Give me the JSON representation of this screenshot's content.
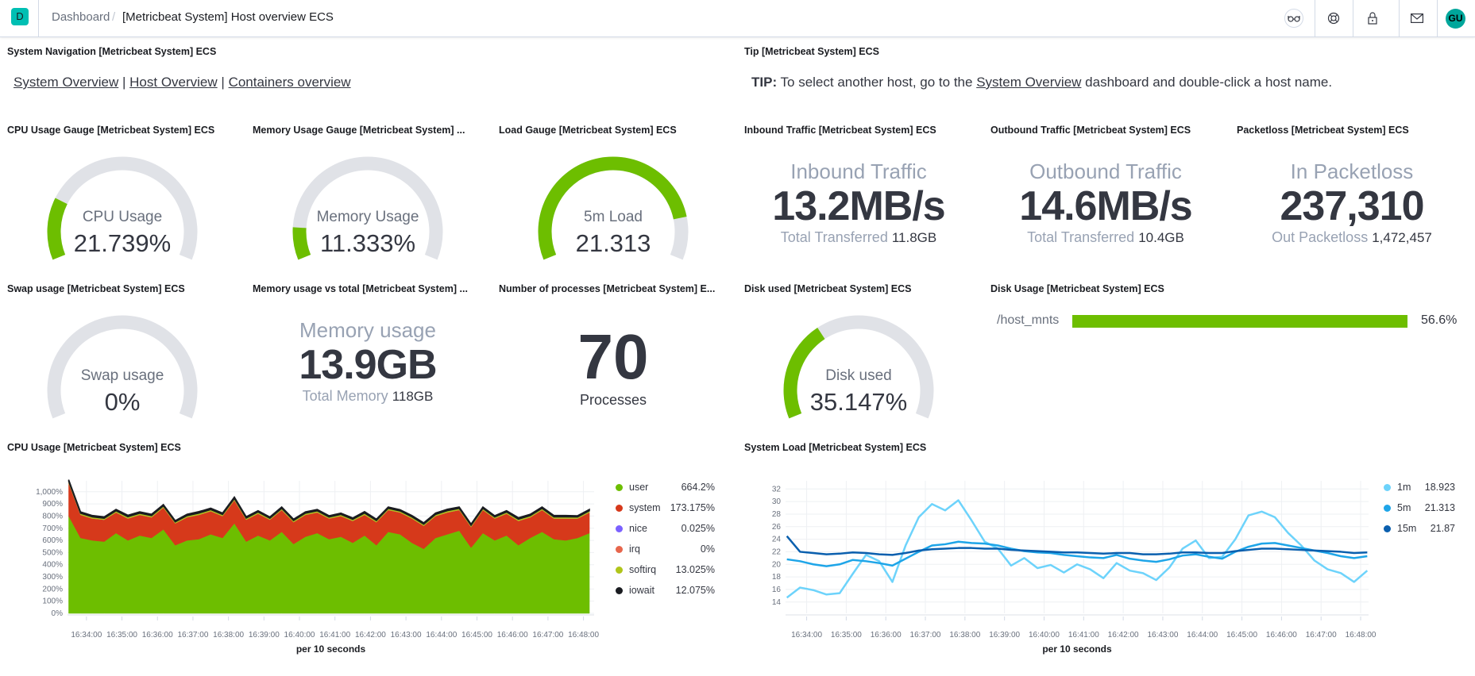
{
  "header": {
    "logo_letter": "D",
    "breadcrumb_root": "Dashboard",
    "breadcrumb_current": "[Metricbeat System] Host overview ECS",
    "icons": [
      "glasses-icon",
      "help-icon",
      "lock-icon",
      "mail-icon"
    ],
    "avatar": "GU"
  },
  "colors": {
    "accent": "#00bfb3",
    "green": "#6dbe00",
    "track": "#e0e2e7"
  },
  "nav": {
    "title": "System Navigation [Metricbeat System] ECS",
    "links": [
      "System Overview",
      "Host Overview",
      "Containers overview"
    ],
    "sep": "|"
  },
  "tip": {
    "title": "Tip [Metricbeat System] ECS",
    "prefix": "TIP:",
    "before": " To select another host, go to the ",
    "link": "System Overview",
    "after": " dashboard and double-click a host name."
  },
  "gauges": {
    "cpu": {
      "title": "CPU Usage Gauge [Metricbeat System] ECS",
      "label": "CPU Usage",
      "value": "21.739%",
      "fill_fraction": 0.21739
    },
    "memory": {
      "title": "Memory Usage Gauge [Metricbeat System] ...",
      "label": "Memory Usage",
      "value": "11.333%",
      "fill_fraction": 0.11333
    },
    "load": {
      "title": "Load Gauge [Metricbeat System] ECS",
      "label": "5m Load",
      "value": "21.313",
      "fill_fraction": 0.85
    },
    "swap": {
      "title": "Swap usage [Metricbeat System] ECS",
      "label": "Swap usage",
      "value": "0%",
      "fill_fraction": 0
    },
    "disk": {
      "title": "Disk used [Metricbeat System] ECS",
      "label": "Disk used",
      "value": "35.147%",
      "fill_fraction": 0.35147
    }
  },
  "metrics": {
    "inbound": {
      "title": "Inbound Traffic [Metricbeat System] ECS",
      "label": "Inbound Traffic",
      "value": "13.2MB/s",
      "sub_label": "Total Transferred",
      "sub_value": "11.8GB"
    },
    "outbound": {
      "title": "Outbound Traffic [Metricbeat System] ECS",
      "label": "Outbound Traffic",
      "value": "14.6MB/s",
      "sub_label": "Total Transferred",
      "sub_value": "10.4GB"
    },
    "packetloss": {
      "title": "Packetloss [Metricbeat System] ECS",
      "label": "In Packetloss",
      "value": "237,310",
      "sub_label": "Out Packetloss",
      "sub_value": "1,472,457"
    },
    "memusage": {
      "title": "Memory usage vs total [Metricbeat System] ...",
      "label": "Memory usage",
      "value": "13.9GB",
      "sub_label": "Total Memory",
      "sub_value": "118GB"
    },
    "processes": {
      "title": "Number of processes [Metricbeat System] E...",
      "value": "70",
      "label": "Processes"
    }
  },
  "disk_usage": {
    "title": "Disk Usage [Metricbeat System] ECS",
    "rows": [
      {
        "label": "/host_mnts",
        "value": "56.6%"
      }
    ]
  },
  "chart_data": [
    {
      "type": "area",
      "stacked": true,
      "title": "CPU Usage [Metricbeat System] ECS",
      "xlabel": "per 10 seconds",
      "ylabel": "",
      "ylim": [
        0,
        1090
      ],
      "yticks": [
        "0%",
        "100%",
        "200%",
        "300%",
        "400%",
        "500%",
        "600%",
        "700%",
        "800%",
        "900%",
        "1,000%"
      ],
      "xticks": [
        "16:34:00",
        "16:35:00",
        "16:36:00",
        "16:37:00",
        "16:38:00",
        "16:39:00",
        "16:40:00",
        "16:41:00",
        "16:42:00",
        "16:43:00",
        "16:44:00",
        "16:45:00",
        "16:46:00",
        "16:47:00",
        "16:48:00"
      ],
      "grid": true,
      "legend": "right",
      "x": [
        "16:33:30",
        "16:33:50",
        "16:34:10",
        "16:34:30",
        "16:34:50",
        "16:35:10",
        "16:35:30",
        "16:35:50",
        "16:36:10",
        "16:36:30",
        "16:36:50",
        "16:37:10",
        "16:37:30",
        "16:37:50",
        "16:38:10",
        "16:38:30",
        "16:38:50",
        "16:39:10",
        "16:39:30",
        "16:39:50",
        "16:40:10",
        "16:40:30",
        "16:40:50",
        "16:41:10",
        "16:41:30",
        "16:41:50",
        "16:42:10",
        "16:42:30",
        "16:42:50",
        "16:43:10",
        "16:43:30",
        "16:43:50",
        "16:44:10",
        "16:44:30",
        "16:44:50",
        "16:45:10",
        "16:45:30",
        "16:45:50",
        "16:46:10",
        "16:46:30",
        "16:46:50",
        "16:47:10",
        "16:47:30",
        "16:47:50",
        "16:48:10"
      ],
      "series": [
        {
          "name": "user",
          "legend_value": "664.2%",
          "color": "#6dbe00",
          "values": [
            800,
            620,
            600,
            590,
            660,
            600,
            640,
            620,
            690,
            560,
            600,
            610,
            650,
            620,
            740,
            590,
            640,
            600,
            670,
            570,
            630,
            660,
            610,
            630,
            580,
            640,
            560,
            670,
            650,
            580,
            530,
            620,
            650,
            680,
            540,
            660,
            600,
            640,
            560,
            620,
            670,
            610,
            600,
            620,
            660
          ]
        },
        {
          "name": "system",
          "legend_value": "173.175%",
          "color": "#d6391b",
          "values": [
            270,
            190,
            180,
            180,
            170,
            180,
            170,
            170,
            180,
            180,
            190,
            200,
            190,
            180,
            190,
            180,
            180,
            170,
            180,
            180,
            180,
            170,
            170,
            170,
            180,
            170,
            190,
            180,
            180,
            200,
            190,
            180,
            180,
            170,
            170,
            190,
            180,
            180,
            200,
            170,
            180,
            170,
            180,
            160,
            170
          ]
        },
        {
          "name": "nice",
          "legend_value": "0.025%",
          "color": "#7b61ff",
          "values": [
            0,
            0,
            0,
            0,
            0,
            0,
            0,
            0,
            0,
            0,
            0,
            0,
            0,
            0,
            0,
            0,
            0,
            0,
            0,
            0,
            0,
            0,
            0,
            0,
            0,
            0,
            0,
            0,
            0,
            0,
            0,
            0,
            0,
            0,
            0,
            0,
            0,
            0,
            0,
            0,
            0,
            0,
            0,
            0,
            0
          ]
        },
        {
          "name": "irq",
          "legend_value": "0%",
          "color": "#e7664c",
          "values": [
            0,
            0,
            0,
            0,
            0,
            0,
            0,
            0,
            0,
            0,
            0,
            0,
            0,
            0,
            0,
            0,
            0,
            0,
            0,
            0,
            0,
            0,
            0,
            0,
            0,
            0,
            0,
            0,
            0,
            0,
            0,
            0,
            0,
            0,
            0,
            0,
            0,
            0,
            0,
            0,
            0,
            0,
            0,
            0,
            0
          ]
        },
        {
          "name": "softirq",
          "legend_value": "13.025%",
          "color": "#b0c51a",
          "values": [
            15,
            13,
            13,
            12,
            13,
            14,
            13,
            13,
            13,
            12,
            13,
            14,
            13,
            13,
            14,
            13,
            13,
            12,
            13,
            13,
            13,
            13,
            12,
            13,
            13,
            14,
            13,
            13,
            12,
            13,
            13,
            13,
            14,
            13,
            13,
            13,
            12,
            13,
            14,
            13,
            13,
            13,
            13,
            12,
            13
          ]
        },
        {
          "name": "iowait",
          "legend_value": "12.075%",
          "color": "#1a1c21",
          "values": [
            14,
            12,
            12,
            12,
            12,
            13,
            12,
            12,
            12,
            11,
            12,
            13,
            12,
            12,
            13,
            12,
            12,
            11,
            12,
            12,
            12,
            12,
            11,
            12,
            12,
            13,
            12,
            12,
            11,
            12,
            12,
            12,
            13,
            12,
            12,
            12,
            11,
            12,
            13,
            12,
            12,
            12,
            12,
            11,
            12
          ]
        }
      ]
    },
    {
      "type": "line",
      "title": "System Load [Metricbeat System] ECS",
      "xlabel": "per 10 seconds",
      "ylabel": "",
      "ylim": [
        12.2,
        33.3
      ],
      "yticks": [
        "14",
        "16",
        "18",
        "20",
        "22",
        "24",
        "26",
        "28",
        "30",
        "32"
      ],
      "xticks": [
        "16:34:00",
        "16:35:00",
        "16:36:00",
        "16:37:00",
        "16:38:00",
        "16:39:00",
        "16:40:00",
        "16:41:00",
        "16:42:00",
        "16:43:00",
        "16:44:00",
        "16:45:00",
        "16:46:00",
        "16:47:00",
        "16:48:00"
      ],
      "grid": true,
      "legend": "right",
      "x": [
        "16:33:30",
        "16:33:50",
        "16:34:10",
        "16:34:30",
        "16:34:50",
        "16:35:10",
        "16:35:30",
        "16:35:50",
        "16:36:10",
        "16:36:30",
        "16:36:50",
        "16:37:10",
        "16:37:30",
        "16:37:50",
        "16:38:10",
        "16:38:30",
        "16:38:50",
        "16:39:10",
        "16:39:30",
        "16:39:50",
        "16:40:10",
        "16:40:30",
        "16:40:50",
        "16:41:10",
        "16:41:30",
        "16:41:50",
        "16:42:10",
        "16:42:30",
        "16:42:50",
        "16:43:10",
        "16:43:30",
        "16:43:50",
        "16:44:10",
        "16:44:30",
        "16:44:50",
        "16:45:10",
        "16:45:30",
        "16:45:50",
        "16:46:10",
        "16:46:30",
        "16:46:50",
        "16:47:10",
        "16:47:30",
        "16:47:50",
        "16:48:10"
      ],
      "series": [
        {
          "name": "1m",
          "legend_value": "18.923",
          "color": "#6dd3fb",
          "values": [
            14.7,
            16.3,
            15.9,
            15.2,
            15.4,
            18.5,
            21.5,
            20.5,
            17.2,
            23.0,
            27.5,
            29.6,
            28.6,
            30.2,
            27.0,
            23.6,
            22.5,
            19.8,
            21.0,
            19.4,
            19.9,
            18.7,
            20.0,
            19.2,
            17.8,
            20.2,
            19.0,
            18.6,
            17.5,
            19.5,
            22.5,
            23.8,
            21.0,
            21.2,
            24.0,
            27.8,
            28.4,
            27.5,
            25.0,
            23.0,
            20.6,
            19.2,
            18.6,
            17.2,
            19.0
          ]
        },
        {
          "name": "5m",
          "legend_value": "21.313",
          "color": "#1ea5e8",
          "values": [
            20.8,
            20.5,
            20.0,
            19.7,
            20.0,
            20.7,
            20.5,
            20.2,
            19.8,
            20.9,
            22.0,
            23.0,
            23.2,
            23.6,
            23.4,
            23.3,
            23.0,
            22.5,
            22.1,
            21.9,
            21.8,
            21.5,
            21.3,
            21.1,
            21.0,
            21.5,
            20.9,
            20.6,
            20.4,
            20.8,
            21.4,
            21.6,
            21.2,
            20.9,
            22.0,
            22.8,
            23.3,
            23.4,
            23.0,
            22.6,
            22.2,
            21.8,
            21.3,
            21.0,
            21.3
          ]
        },
        {
          "name": "15m",
          "legend_value": "21.87",
          "color": "#0a5fae",
          "values": [
            24.5,
            22.0,
            21.8,
            21.6,
            21.7,
            21.9,
            21.8,
            21.6,
            21.5,
            21.8,
            22.2,
            22.4,
            22.5,
            22.6,
            22.6,
            22.5,
            22.5,
            22.3,
            22.2,
            22.1,
            22.0,
            21.9,
            21.9,
            21.8,
            21.7,
            21.8,
            21.8,
            21.6,
            21.6,
            21.7,
            21.9,
            21.9,
            21.8,
            21.8,
            22.1,
            22.3,
            22.5,
            22.5,
            22.4,
            22.3,
            22.2,
            22.1,
            22.0,
            21.8,
            21.9
          ]
        }
      ]
    }
  ]
}
